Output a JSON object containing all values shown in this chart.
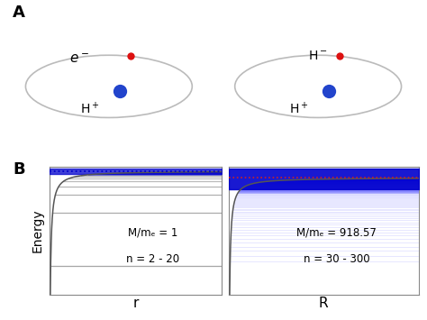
{
  "panel_A_label": "A",
  "panel_B_label": "B",
  "atom1_e_label": "$e^-$",
  "atom1_core_label": "H$^+$",
  "atom2_e_label": "H$^-$",
  "atom2_core_label": "H$^+$",
  "plot1_annotation_line1": "M/m",
  "plot1_annotation_line2": "e",
  "plot2_annotation": "M/mₑ = 918.57\n\nn = 30 - 300",
  "plot1_annotation": "M/mₑ = 1\n\nn = 2 - 20",
  "xlabel1": "r",
  "xlabel2": "R",
  "ylabel": "Energy",
  "n1_min": 2,
  "n1_max": 20,
  "n2_min": 30,
  "n2_max": 300,
  "circle_color": "#bbbbbb",
  "red_dot_color": "#dd1111",
  "blue_dot_color": "#2244cc",
  "plot_border_color": "#888888",
  "bg_color": "#ffffff",
  "dark_blue": "#0000aa",
  "mid_blue": "#4444cc",
  "light_gray": "#aaaaaa",
  "dotted_blue_color": "#0000cc",
  "dotted_red_color": "#cc2222"
}
